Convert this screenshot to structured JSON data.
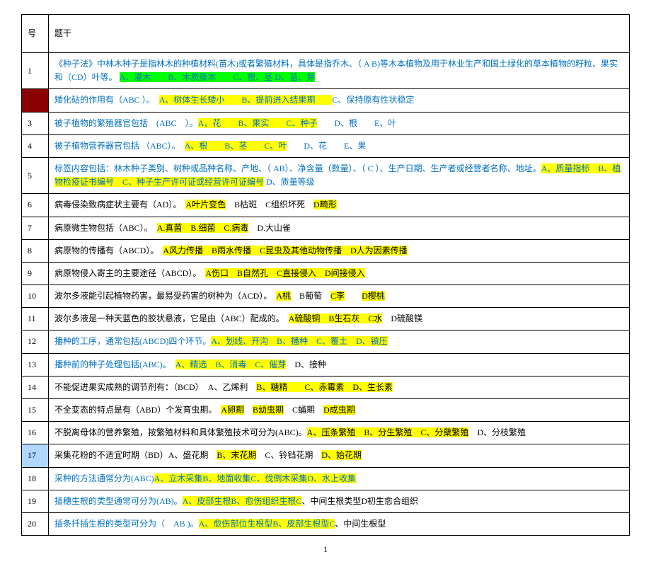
{
  "header": {
    "num": "号",
    "stem": "题干"
  },
  "rows": [
    {
      "num": "1",
      "numClass": "",
      "segs": [
        {
          "t": "《种子法》中林木种子是指林木的种植材料(苗木)或者繁殖材料，具体是指乔木、（ A B)等木本植物及用于林业生产和国土绿化的草本植物的籽粒、果实和（CD）叶等。 ",
          "cls": "txt-blue"
        },
        {
          "t": "A、灌木　　B、木质藤本　　C、根、茎 D、苗、芽",
          "cls": "hl-green txt-blue"
        }
      ]
    },
    {
      "num": "　",
      "numClass": "hl-dred",
      "segs": [
        {
          "t": "矮化砧的作用有（ABC ）。　",
          "cls": "txt-blue"
        },
        {
          "t": "A、树体生长矮小　",
          "cls": "hl-yellow txt-blue"
        },
        {
          "t": "　B、提前进入结果期　　",
          "cls": "hl-yellow txt-blue"
        },
        {
          "t": "C、保持原有性状稳定",
          "cls": "txt-blue"
        }
      ]
    },
    {
      "num": "3",
      "numClass": "",
      "segs": [
        {
          "t": "被子植物的繁殖器官包括　(ABC　）。",
          "cls": "txt-blue"
        },
        {
          "t": "A、花　　B、果实　　C、种子",
          "cls": "hl-yellow txt-blue"
        },
        {
          "t": "　　D、根　　E、叶",
          "cls": "txt-blue"
        }
      ]
    },
    {
      "num": "4",
      "numClass": "",
      "segs": [
        {
          "t": "被子植物营养器官包括 （ABC）。　",
          "cls": "txt-blue"
        },
        {
          "t": "A、根　　B、茎　　C、叶",
          "cls": "hl-yellow txt-blue"
        },
        {
          "t": "　　D、花　　E、果",
          "cls": "txt-blue"
        }
      ]
    },
    {
      "num": "5",
      "numClass": "",
      "segs": [
        {
          "t": "标签内容包括：林木种子类别、树种或品种名称、产地、（ AB）、净含量（数量）、（ C ）、生产日期、生产者或经营者名称、地址。",
          "cls": "txt-blue"
        },
        {
          "t": "A、质量指标　B、植物检疫证书编号　C、种子生产许可证或经营许可证编号",
          "cls": "hl-yellow txt-blue"
        },
        {
          "t": " D、质量等级",
          "cls": "txt-blue"
        }
      ]
    },
    {
      "num": "6",
      "numClass": "",
      "segs": [
        {
          "t": "病毒侵染致病症状主要有（AD）。　",
          "cls": ""
        },
        {
          "t": "A叶片变色",
          "cls": "hl-yellow"
        },
        {
          "t": "　B枯斑　C组织坏死　",
          "cls": ""
        },
        {
          "t": "D畸形",
          "cls": "hl-yellow"
        }
      ]
    },
    {
      "num": "7",
      "numClass": "",
      "segs": [
        {
          "t": "病原微生物包括（ABC）。　",
          "cls": ""
        },
        {
          "t": "A.真菌　B.细菌　C.病毒",
          "cls": "hl-yellow"
        },
        {
          "t": "　D.大山雀",
          "cls": ""
        }
      ]
    },
    {
      "num": "8",
      "numClass": "",
      "segs": [
        {
          "t": "病原物的传播有（ABCD）。　",
          "cls": ""
        },
        {
          "t": "A风力传播　B雨水传播　C昆虫及其他动物传播　D人为因素传播",
          "cls": "hl-yellow"
        }
      ]
    },
    {
      "num": "9",
      "numClass": "",
      "segs": [
        {
          "t": "病原物侵入寄主的主要途径（ABCD）。　",
          "cls": ""
        },
        {
          "t": "A伤口　B自然孔　C直接侵入　D间接侵入",
          "cls": "hl-yellow"
        }
      ]
    },
    {
      "num": "10",
      "numClass": "",
      "segs": [
        {
          "t": "波尔多液能引起植物药害，最易受药害的树种为（ACD）。　",
          "cls": ""
        },
        {
          "t": "A桃",
          "cls": "hl-yellow"
        },
        {
          "t": "　B葡萄　",
          "cls": ""
        },
        {
          "t": "C李",
          "cls": "hl-yellow"
        },
        {
          "t": "　　",
          "cls": ""
        },
        {
          "t": "D樱桃",
          "cls": "hl-yellow"
        }
      ]
    },
    {
      "num": "11",
      "numClass": "",
      "segs": [
        {
          "t": "波尔多液是一种天蓝色的胶状悬液，它是由（ABC）配成的。　",
          "cls": ""
        },
        {
          "t": "A硫酸铜　B生石灰　C水",
          "cls": "hl-yellow"
        },
        {
          "t": "　D硫酸镁",
          "cls": ""
        }
      ]
    },
    {
      "num": "12",
      "numClass": "",
      "segs": [
        {
          "t": "播种的工序，通常包括(ABCD)四个环节。",
          "cls": "txt-blue"
        },
        {
          "t": "A、划线、开沟　B、播种　C、覆土　D、镇压",
          "cls": "hl-yellow txt-blue"
        }
      ]
    },
    {
      "num": "13",
      "numClass": "",
      "segs": [
        {
          "t": "播种前的种子处理包括(ABC)。　",
          "cls": "txt-blue"
        },
        {
          "t": "A、精选　B、消毒　C、催芽",
          "cls": "hl-yellow txt-blue"
        },
        {
          "t": "　D、接种",
          "cls": ""
        }
      ]
    },
    {
      "num": "14",
      "numClass": "",
      "segs": [
        {
          "t": "不能促进果实成熟的调节剂有：（BCD）　A、乙烯利　",
          "cls": ""
        },
        {
          "t": "B、糖精　　C、赤霉素　D、生长素",
          "cls": "hl-yellow"
        }
      ]
    },
    {
      "num": "15",
      "numClass": "",
      "segs": [
        {
          "t": "不全变态的特点是有（ABD）个发育虫期。　",
          "cls": ""
        },
        {
          "t": "A卵期",
          "cls": "hl-yellow"
        },
        {
          "t": "　",
          "cls": ""
        },
        {
          "t": "B幼虫期",
          "cls": "hl-yellow"
        },
        {
          "t": "　C蛹期　",
          "cls": ""
        },
        {
          "t": "D成虫期",
          "cls": "hl-yellow"
        }
      ]
    },
    {
      "num": "16",
      "numClass": "",
      "segs": [
        {
          "t": "不脱离母体的营养繁殖，按繁殖材料和具体繁殖技术可分为(ABC)。",
          "cls": ""
        },
        {
          "t": "A、压条繁殖　B、分生繁殖　C、分蘖繁殖",
          "cls": "hl-yellow"
        },
        {
          "t": "　D、分枝繁殖",
          "cls": ""
        }
      ]
    },
    {
      "num": "17",
      "numClass": "hl-lblue",
      "segs": [
        {
          "t": "采集花粉的不适宜时期（BD）A、盛花期　",
          "cls": ""
        },
        {
          "t": "B、末花期",
          "cls": "hl-yellow"
        },
        {
          "t": "　C、铃铛花期　",
          "cls": ""
        },
        {
          "t": "D、始花期",
          "cls": "hl-yellow"
        }
      ]
    },
    {
      "num": "18",
      "numClass": "",
      "segs": [
        {
          "t": "采种的方法通常分为(ABC)",
          "cls": "txt-blue"
        },
        {
          "t": "A、立木采集B、地面收集C、伐倒木采集D、水上收集",
          "cls": "hl-yellow txt-blue"
        }
      ]
    },
    {
      "num": "19",
      "numClass": "",
      "segs": [
        {
          "t": "插穗生根的类型通常可分为(AB)。",
          "cls": "txt-blue"
        },
        {
          "t": "A、皮部生根B、愈伤组织生根C",
          "cls": "hl-yellow txt-blue"
        },
        {
          "t": "、中间生根类型D初生愈合组织",
          "cls": ""
        }
      ]
    },
    {
      "num": "20",
      "numClass": "",
      "segs": [
        {
          "t": "插条扦插生根的类型可分为（　AB )。",
          "cls": "txt-blue"
        },
        {
          "t": "A、愈伤部位生根型B、皮部生根型C",
          "cls": "hl-yellow txt-blue"
        },
        {
          "t": "、中间生根型",
          "cls": ""
        }
      ]
    }
  ],
  "pageNumber": "1"
}
